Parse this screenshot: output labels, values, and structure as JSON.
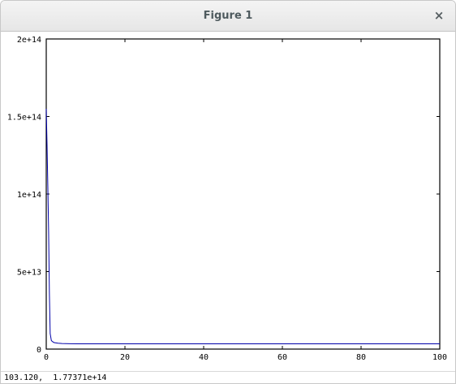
{
  "window": {
    "title": "Figure 1",
    "close_icon": "close-icon"
  },
  "status": {
    "coordinate_readout": "103.120,  1.77371e+14"
  },
  "chart_data": {
    "type": "line",
    "xlim": [
      0,
      100
    ],
    "ylim": [
      0,
      200000000000000.0
    ],
    "x_ticks": [
      0,
      20,
      40,
      60,
      80,
      100
    ],
    "x_tick_labels": [
      "0",
      "20",
      "40",
      "60",
      "80",
      "100"
    ],
    "y_ticks": [
      0,
      50000000000000.0,
      100000000000000.0,
      150000000000000.0,
      200000000000000.0
    ],
    "y_tick_labels": [
      "0",
      "5e+13",
      "1e+14",
      "1.5e+14",
      "2e+14"
    ],
    "grid": false,
    "series": [
      {
        "color": "#0000aa",
        "x": [
          0,
          0.2,
          0.4,
          0.6,
          0.8,
          1.0,
          1.3,
          1.6,
          2,
          3,
          4,
          5,
          6,
          8,
          10,
          15,
          20,
          30,
          40,
          50,
          60,
          70,
          80,
          90,
          100
        ],
        "y": [
          155000000000000.0,
          132000000000000.0,
          105000000000000.0,
          76000000000000.0,
          36000000000000.0,
          10000000000000.0,
          5500000000000.0,
          4800000000000.0,
          4200000000000.0,
          3800000000000.0,
          3600000000000.0,
          3500000000000.0,
          3450000000000.0,
          3400000000000.0,
          3400000000000.0,
          3400000000000.0,
          3400000000000.0,
          3400000000000.0,
          3400000000000.0,
          3400000000000.0,
          3400000000000.0,
          3400000000000.0,
          3400000000000.0,
          3400000000000.0,
          3400000000000.0
        ]
      }
    ]
  }
}
